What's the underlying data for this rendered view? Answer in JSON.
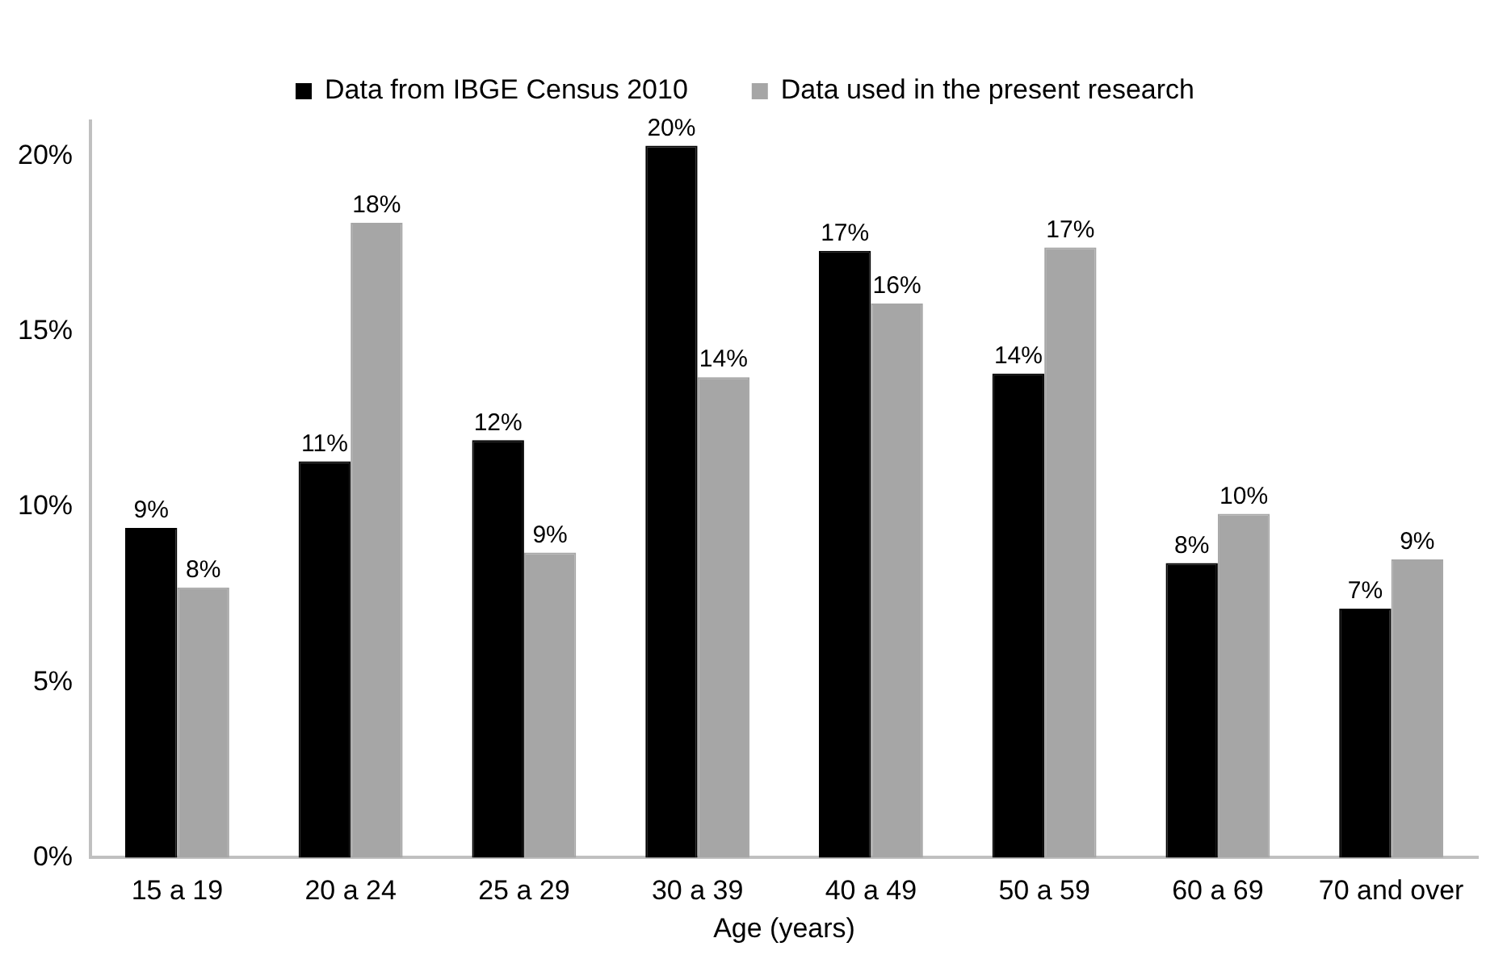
{
  "chart_data": {
    "type": "bar",
    "xlabel": "Age (years)",
    "categories": [
      "15 a 19",
      "20 a 24",
      "25 a 29",
      "30 a 39",
      "40 a 49",
      "50 a 59",
      "60 a 69",
      "70 and over"
    ],
    "series": [
      {
        "name": "Data from IBGE Census 2010",
        "color": "#000000",
        "values": [
          9.4,
          11.3,
          11.9,
          20.3,
          17.3,
          13.8,
          8.4,
          7.1
        ],
        "value_labels": [
          "9%",
          "11%",
          "12%",
          "20%",
          "17%",
          "14%",
          "8%",
          "7%"
        ]
      },
      {
        "name": "Data used in the present research",
        "color": "#a6a6a6",
        "values": [
          7.7,
          18.1,
          8.7,
          13.7,
          15.8,
          17.4,
          9.8,
          8.5
        ],
        "value_labels": [
          "8%",
          "18%",
          "9%",
          "14%",
          "16%",
          "17%",
          "10%",
          "9%"
        ]
      }
    ],
    "ylim": [
      0,
      21
    ],
    "yticks": [
      {
        "value": 0,
        "label": "0%"
      },
      {
        "value": 5,
        "label": "5%"
      },
      {
        "value": 10,
        "label": "10%"
      },
      {
        "value": 15,
        "label": "15%"
      },
      {
        "value": 20,
        "label": "20%"
      }
    ],
    "grid": false,
    "legend": "top"
  }
}
